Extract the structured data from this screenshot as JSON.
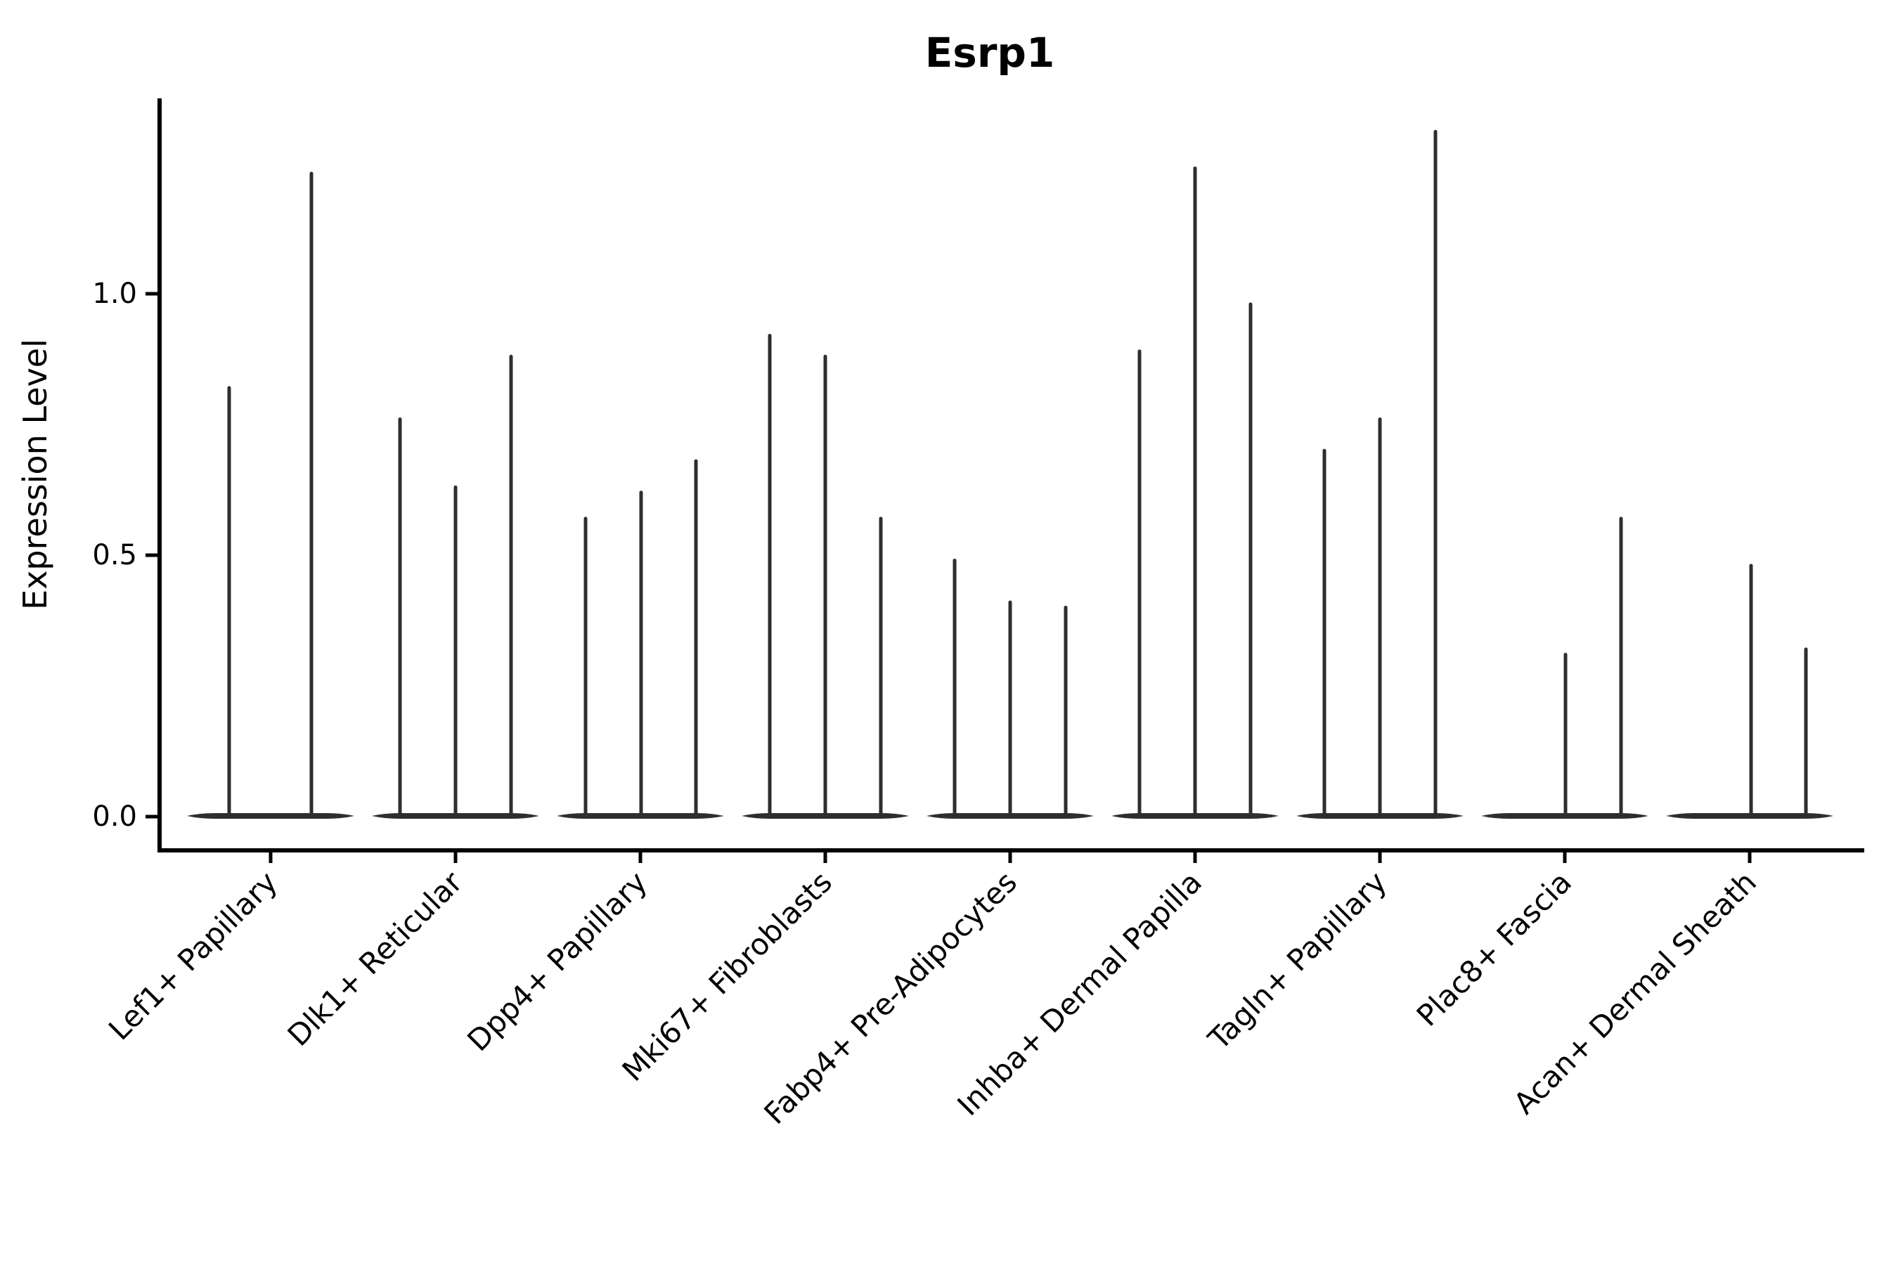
{
  "chart_data": {
    "type": "violin",
    "title": "Esrp1",
    "ylabel": "Expression Level",
    "xlabel": "",
    "ytick_labels": [
      "0.0",
      "0.5",
      "1.0"
    ],
    "ytick_values": [
      0.0,
      0.5,
      1.0
    ],
    "ylim": [
      -0.07,
      1.37
    ],
    "grid": false,
    "legend": "none",
    "colors": {
      "violin_stroke": "#2e2e2e",
      "spine": "#000000",
      "text": "#000000",
      "background": "#ffffff"
    },
    "categories": [
      "Lef1+ Papillary",
      "Dlk1+ Reticular",
      "Dpp4+ Papillary",
      "Mki67+ Fibroblasts",
      "Fabp4+ Pre-Adipocytes",
      "Inhba+ Dermal Papilla",
      "Tagln+ Papillary",
      "Plac8+ Fascia",
      "Acan+ Dermal Sheath"
    ],
    "groups": [
      {
        "label": "Lef1+ Papillary",
        "center": 385,
        "violins": [
          {
            "dx": -59,
            "peak": 0.82
          },
          {
            "dx": 58,
            "peak": 1.23
          }
        ]
      },
      {
        "label": "Dlk1+ Reticular",
        "center": 648,
        "violins": [
          {
            "dx": -79,
            "peak": 0.76
          },
          {
            "dx": 0,
            "peak": 0.63
          },
          {
            "dx": 79,
            "peak": 0.88
          }
        ]
      },
      {
        "label": "Dpp4+ Papillary",
        "center": 911,
        "violins": [
          {
            "dx": -78,
            "peak": 0.57
          },
          {
            "dx": 1,
            "peak": 0.62
          },
          {
            "dx": 79,
            "peak": 0.68
          }
        ]
      },
      {
        "label": "Mki67+ Fibroblasts",
        "center": 1174,
        "violins": [
          {
            "dx": -79,
            "peak": 0.92
          },
          {
            "dx": 0,
            "peak": 0.88
          },
          {
            "dx": 79,
            "peak": 0.57
          }
        ]
      },
      {
        "label": "Fabp4+ Pre-Adipocytes",
        "center": 1437,
        "violins": [
          {
            "dx": -79,
            "peak": 0.49
          },
          {
            "dx": 0,
            "peak": 0.41
          },
          {
            "dx": 79,
            "peak": 0.4
          }
        ]
      },
      {
        "label": "Inhba+ Dermal Papilla",
        "center": 1700,
        "violins": [
          {
            "dx": -79,
            "peak": 0.89
          },
          {
            "dx": 0,
            "peak": 1.24
          },
          {
            "dx": 79,
            "peak": 0.98
          }
        ]
      },
      {
        "label": "Tagln+ Papillary",
        "center": 1963,
        "violins": [
          {
            "dx": -79,
            "peak": 0.7
          },
          {
            "dx": 0,
            "peak": 0.76
          },
          {
            "dx": 79,
            "peak": 1.31
          }
        ]
      },
      {
        "label": "Plac8+ Fascia",
        "center": 2226,
        "violins": [
          {
            "dx": -79,
            "peak": 0
          },
          {
            "dx": 1,
            "peak": 0.31
          },
          {
            "dx": 80,
            "peak": 0.57
          }
        ]
      },
      {
        "label": "Acan+ Dermal Sheath",
        "center": 2489,
        "violins": [
          {
            "dx": -79,
            "peak": 0
          },
          {
            "dx": 2,
            "peak": 0.48
          },
          {
            "dx": 80,
            "peak": 0.32
          }
        ]
      }
    ],
    "baseline_halfwidth": 119
  }
}
